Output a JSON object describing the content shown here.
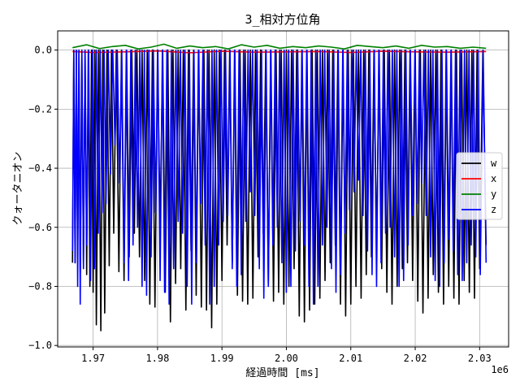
{
  "chart_data": {
    "type": "line",
    "title": "3_相対方位角",
    "xlabel": "経過時間 [ms]",
    "ylabel": "クォータニオン",
    "x_offset_label": "1e6",
    "xlim": [
      1.9645,
      2.0345
    ],
    "ylim": [
      -1.005,
      0.065
    ],
    "x_ticks": [
      1.97,
      1.98,
      1.99,
      2.0,
      2.01,
      2.02,
      2.03
    ],
    "x_tick_labels": [
      "1.97",
      "1.98",
      "1.99",
      "2.00",
      "2.01",
      "2.02",
      "2.03"
    ],
    "y_ticks": [
      0.0,
      -0.2,
      -0.4,
      -0.6,
      -0.8,
      -1.0
    ],
    "y_tick_labels": [
      "0.0",
      "−0.2",
      "−0.4",
      "−0.6",
      "−0.8",
      "−1.0"
    ],
    "grid": true,
    "legend_position": "center-right",
    "series": [
      {
        "name": "w",
        "color": "#000000",
        "x": [
          1.9668,
          1.9672,
          1.9676,
          1.968,
          1.9685,
          1.969,
          1.9695,
          1.97,
          1.9705,
          1.9712,
          1.9718,
          1.9725,
          1.9732,
          1.974,
          1.9748,
          1.9756,
          1.9764,
          1.9772,
          1.978,
          1.9788,
          1.9796,
          1.9804,
          1.9812,
          1.982,
          1.9828,
          1.9836,
          1.9844,
          1.9852,
          1.986,
          1.9868,
          1.9876,
          1.9884,
          1.9892,
          1.99,
          1.9908,
          1.9916,
          1.9924,
          1.9932,
          1.994,
          1.9948,
          1.9956,
          1.9964,
          1.9972,
          1.998,
          1.9988,
          1.9996,
          2.0004,
          2.0012,
          2.002,
          2.0028,
          2.0036,
          2.0044,
          2.0052,
          2.006,
          2.0068,
          2.0076,
          2.0084,
          2.0092,
          2.01,
          2.0108,
          2.0116,
          2.0124,
          2.0132,
          2.014,
          2.0148,
          2.0156,
          2.0164,
          2.0172,
          2.018,
          2.0188,
          2.0196,
          2.0204,
          2.0212,
          2.022,
          2.0228,
          2.0236,
          2.0244,
          2.0252,
          2.026,
          2.0268,
          2.0276,
          2.0284,
          2.0292,
          2.03,
          2.031
        ],
        "y": [
          -0.72,
          -0.72,
          -0.7,
          -0.75,
          -0.72,
          -0.76,
          -0.8,
          -0.82,
          -0.93,
          -0.95,
          -0.89,
          -0.73,
          -0.62,
          -0.75,
          -0.78,
          -0.7,
          -0.62,
          -0.7,
          -0.78,
          -0.86,
          -0.87,
          -0.6,
          -0.82,
          -0.92,
          -0.79,
          -0.74,
          -0.88,
          -0.68,
          -0.83,
          -0.87,
          -0.88,
          -0.94,
          -0.86,
          -0.78,
          -0.66,
          -0.72,
          -0.83,
          -0.85,
          -0.86,
          -0.84,
          -0.7,
          -0.62,
          -0.79,
          -0.85,
          -0.82,
          -0.86,
          -0.8,
          -0.74,
          -0.9,
          -0.92,
          -0.88,
          -0.86,
          -0.84,
          -0.78,
          -0.72,
          -0.66,
          -0.86,
          -0.9,
          -0.86,
          -0.8,
          -0.84,
          -0.76,
          -0.7,
          -0.68,
          -0.74,
          -0.82,
          -0.86,
          -0.8,
          -0.74,
          -0.72,
          -0.78,
          -0.85,
          -0.89,
          -0.84,
          -0.76,
          -0.82,
          -0.86,
          -0.8,
          -0.84,
          -0.86,
          -0.78,
          -0.82,
          -0.84,
          -0.74,
          -0.66
        ]
      },
      {
        "name": "x",
        "color": "#ff0000",
        "x": [
          1.9668,
          1.97,
          1.975,
          1.98,
          1.985,
          1.99,
          1.995,
          2.0,
          2.005,
          2.01,
          2.015,
          2.02,
          2.025,
          2.031
        ],
        "y": [
          -0.005,
          -0.008,
          -0.006,
          -0.003,
          -0.009,
          -0.004,
          -0.007,
          -0.006,
          -0.005,
          -0.008,
          -0.004,
          -0.006,
          -0.007,
          -0.005
        ]
      },
      {
        "name": "y",
        "color": "#008000",
        "x": [
          1.9668,
          1.969,
          1.971,
          1.973,
          1.975,
          1.977,
          1.979,
          1.981,
          1.983,
          1.985,
          1.987,
          1.989,
          1.991,
          1.993,
          1.995,
          1.997,
          1.999,
          2.001,
          2.003,
          2.005,
          2.007,
          2.009,
          2.011,
          2.013,
          2.015,
          2.017,
          2.019,
          2.021,
          2.023,
          2.025,
          2.027,
          2.029,
          2.031
        ],
        "y": [
          0.008,
          0.018,
          0.005,
          0.012,
          0.016,
          0.004,
          0.01,
          0.02,
          0.006,
          0.014,
          0.008,
          0.012,
          0.004,
          0.018,
          0.01,
          0.016,
          0.006,
          0.012,
          0.008,
          0.014,
          0.01,
          0.004,
          0.016,
          0.012,
          0.008,
          0.014,
          0.006,
          0.016,
          0.01,
          0.012,
          0.006,
          0.01,
          0.006
        ]
      },
      {
        "name": "z",
        "color": "#0000ff",
        "x": [
          1.9668,
          1.9672,
          1.9676,
          1.968,
          1.9685,
          1.969,
          1.9696,
          1.9702,
          1.9708,
          1.9714,
          1.972,
          1.9727,
          1.9734,
          1.9741,
          1.9748,
          1.9755,
          1.9762,
          1.9769,
          1.9776,
          1.9783,
          1.979,
          1.9797,
          1.9804,
          1.9811,
          1.9818,
          1.9825,
          1.9832,
          1.9839,
          1.9846,
          1.9853,
          1.986,
          1.9867,
          1.9874,
          1.9881,
          1.9888,
          1.9895,
          1.9902,
          1.9909,
          1.9916,
          1.9923,
          1.993,
          1.9937,
          1.9944,
          1.9951,
          1.9958,
          1.9965,
          1.9972,
          1.9979,
          1.9986,
          1.9993,
          2.0,
          2.0007,
          2.0014,
          2.0021,
          2.0028,
          2.0035,
          2.0042,
          2.0049,
          2.0056,
          2.0063,
          2.007,
          2.0077,
          2.0084,
          2.0091,
          2.0098,
          2.0105,
          2.0112,
          2.0119,
          2.0126,
          2.0133,
          2.014,
          2.0147,
          2.0154,
          2.0161,
          2.0168,
          2.0175,
          2.0182,
          2.0189,
          2.0196,
          2.0203,
          2.021,
          2.0217,
          2.0224,
          2.0231,
          2.0238,
          2.0245,
          2.0252,
          2.0259,
          2.0266,
          2.0273,
          2.028,
          2.0287,
          2.0294,
          2.0301,
          2.031
        ],
        "y": [
          -0.68,
          -0.72,
          -0.8,
          -0.86,
          -0.74,
          -0.66,
          -0.78,
          -0.74,
          -0.62,
          -0.55,
          -0.52,
          -0.42,
          -0.32,
          -0.45,
          -0.72,
          -0.78,
          -0.66,
          -0.6,
          -0.8,
          -0.83,
          -0.7,
          -0.55,
          -0.78,
          -0.82,
          -0.86,
          -0.74,
          -0.58,
          -0.62,
          -0.8,
          -0.86,
          -0.72,
          -0.52,
          -0.66,
          -0.86,
          -0.8,
          -0.66,
          -0.58,
          -0.56,
          -0.74,
          -0.8,
          -0.76,
          -0.58,
          -0.48,
          -0.56,
          -0.74,
          -0.84,
          -0.8,
          -0.66,
          -0.6,
          -0.72,
          -0.82,
          -0.8,
          -0.68,
          -0.58,
          -0.66,
          -0.8,
          -0.86,
          -0.8,
          -0.66,
          -0.6,
          -0.74,
          -0.82,
          -0.76,
          -0.62,
          -0.54,
          -0.48,
          -0.44,
          -0.56,
          -0.68,
          -0.76,
          -0.8,
          -0.72,
          -0.62,
          -0.6,
          -0.7,
          -0.8,
          -0.78,
          -0.66,
          -0.56,
          -0.52,
          -0.45,
          -0.56,
          -0.7,
          -0.78,
          -0.8,
          -0.72,
          -0.64,
          -0.68,
          -0.76,
          -0.78,
          -0.72,
          -0.66,
          -0.7,
          -0.76,
          -0.72
        ]
      }
    ]
  }
}
